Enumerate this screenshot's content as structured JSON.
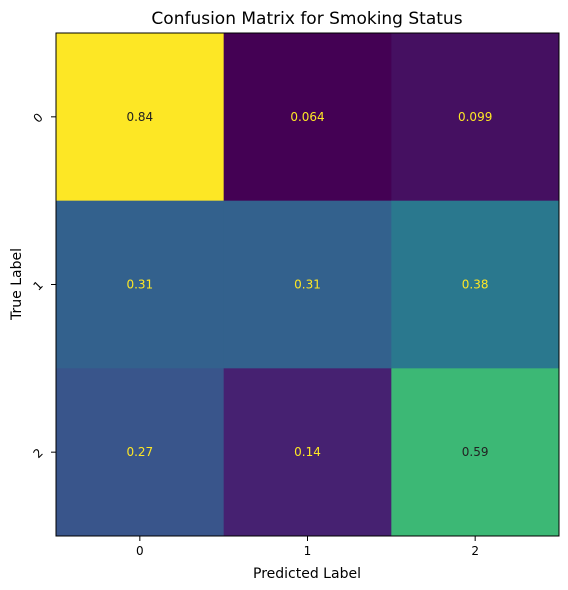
{
  "chart_data": {
    "type": "heatmap",
    "title": "Confusion Matrix for Smoking Status",
    "xlabel": "Predicted Label",
    "ylabel": "True Label",
    "x_categories": [
      "0",
      "1",
      "2"
    ],
    "y_categories": [
      "0",
      "1",
      "2"
    ],
    "values": [
      [
        0.84,
        0.064,
        0.099
      ],
      [
        0.31,
        0.31,
        0.38
      ],
      [
        0.27,
        0.14,
        0.59
      ]
    ],
    "value_labels": [
      [
        "0.84",
        "0.064",
        "0.099"
      ],
      [
        "0.31",
        "0.31",
        "0.38"
      ],
      [
        "0.27",
        "0.14",
        "0.59"
      ]
    ],
    "colormap": "viridis",
    "grid": false
  }
}
